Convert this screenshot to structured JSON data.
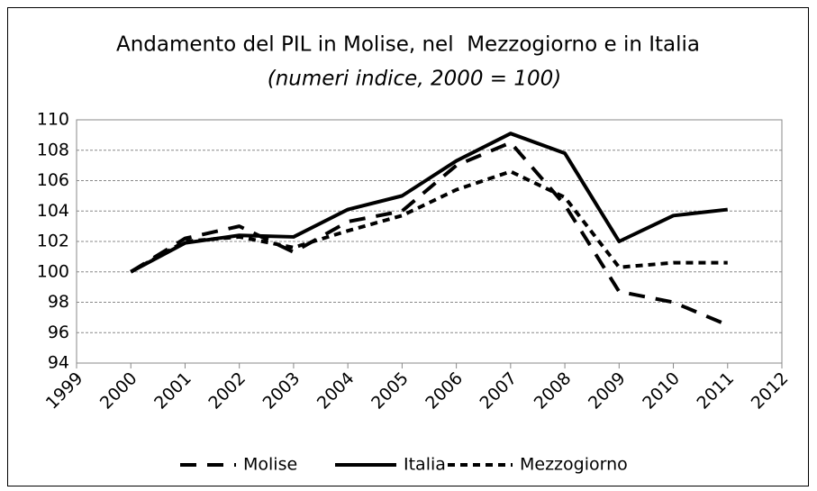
{
  "chart_data": {
    "type": "line",
    "title": "Andamento del PIL in Molise, nel  Mezzogiorno e in Italia",
    "subtitle": "(numeri indice, 2000 = 100)",
    "x": [
      2000,
      2001,
      2002,
      2003,
      2004,
      2005,
      2006,
      2007,
      2008,
      2009,
      2010,
      2011
    ],
    "series": [
      {
        "name": "Molise",
        "color": "#000000",
        "dash": "long",
        "values": [
          100,
          102.2,
          103,
          101.3,
          103.3,
          104,
          107,
          108.5,
          104.4,
          98.7,
          98,
          96.5
        ]
      },
      {
        "name": "Italia",
        "color": "#000000",
        "dash": "solid",
        "values": [
          100,
          101.9,
          102.4,
          102.3,
          104.1,
          105,
          107.3,
          109.1,
          107.8,
          102,
          103.7,
          104.1
        ]
      },
      {
        "name": "Mezzogiorno",
        "color": "#000000",
        "dash": "short",
        "values": [
          100,
          102,
          102.3,
          101.6,
          102.7,
          103.7,
          105.4,
          106.6,
          104.9,
          100.3,
          100.6,
          100.6
        ]
      }
    ],
    "xlim": [
      1999,
      2012
    ],
    "xticks": [
      1999,
      2000,
      2001,
      2002,
      2003,
      2004,
      2005,
      2006,
      2007,
      2008,
      2009,
      2010,
      2011,
      2012
    ],
    "ylim": [
      94,
      110
    ],
    "yticks": [
      94,
      96,
      98,
      100,
      102,
      104,
      106,
      108,
      110
    ],
    "grid": true,
    "legend": "bottom"
  }
}
